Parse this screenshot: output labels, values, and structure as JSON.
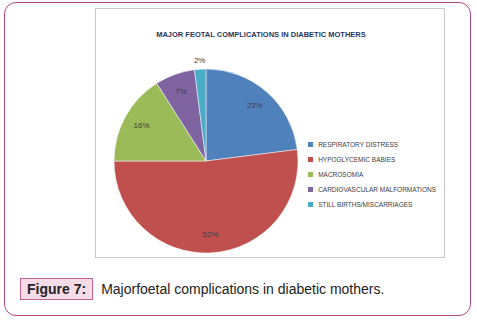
{
  "chart_data": {
    "type": "pie",
    "title": "MAJOR FEOTAL COMPLICATIONS IN DIABETIC MOTHERS",
    "categories": [
      "RESPIRATORY DISTRESS",
      "HYPOGLYCEMIC BABIES",
      "MACROSOMIA",
      "CARDIOVASCULAR MALFORMATIONS",
      "STILL BIRTHS/MISCARRIAGES"
    ],
    "values": [
      23,
      52,
      16,
      7,
      2
    ],
    "value_labels": [
      "23%",
      "52%",
      "16%",
      "7%",
      "2%"
    ],
    "colors": [
      "#4f81bd",
      "#c0504d",
      "#9bbb59",
      "#8064a2",
      "#4bacc6"
    ],
    "data_labels": true,
    "legend": "right"
  },
  "figure_caption": {
    "label": "Figure 7:",
    "text": "Majorfoetal complications in diabetic mothers."
  }
}
